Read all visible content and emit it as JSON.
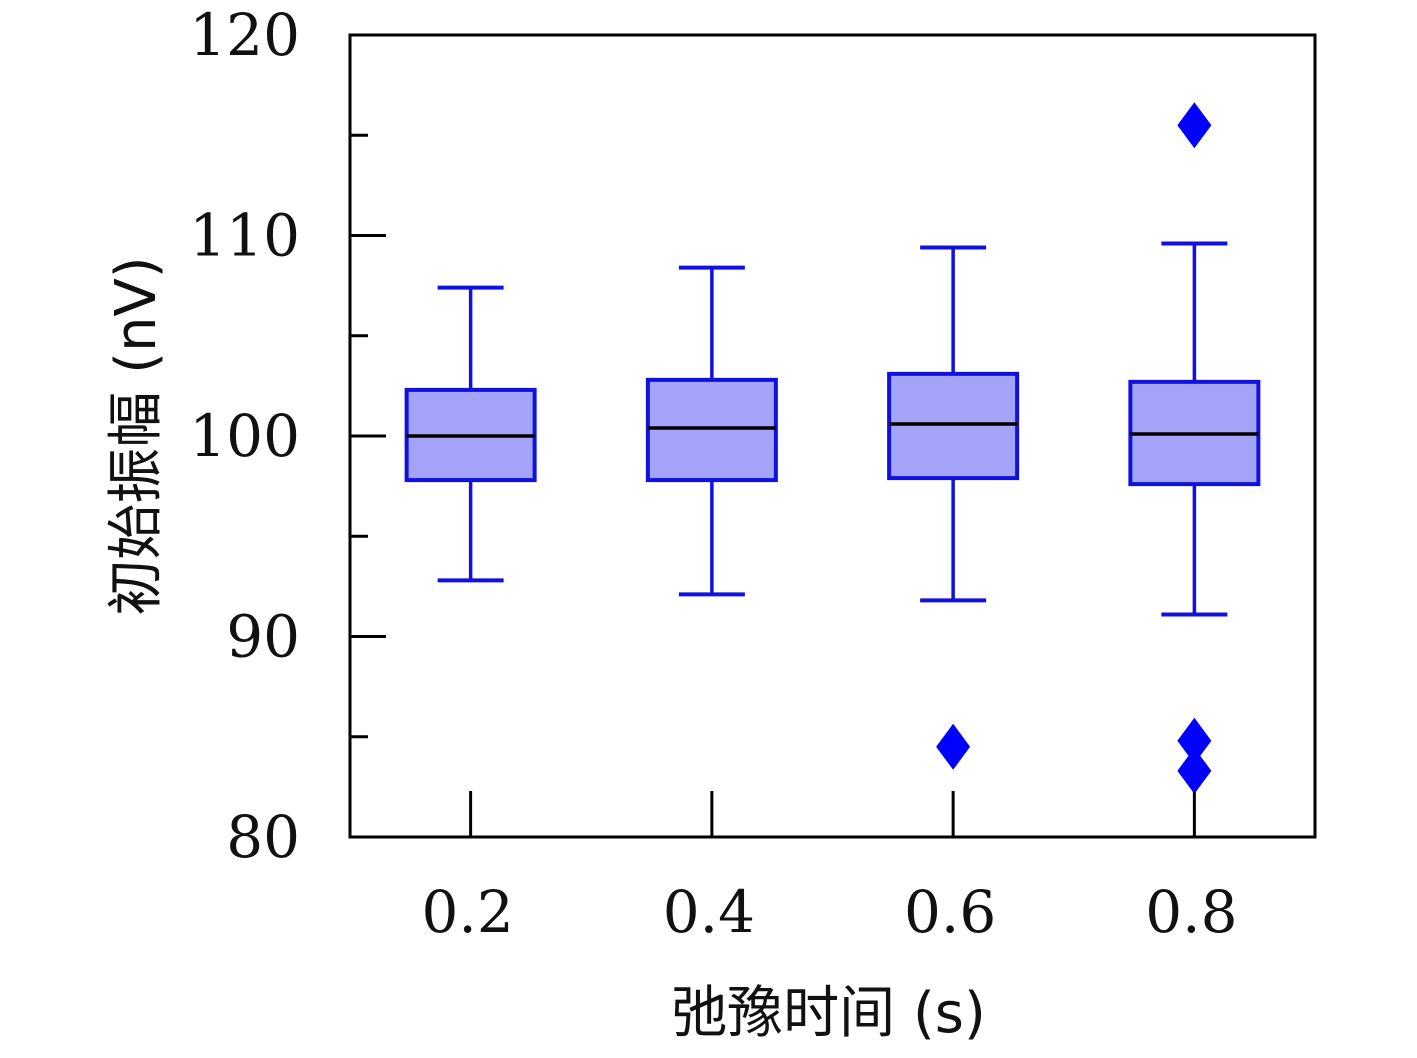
{
  "chart_data": {
    "type": "box",
    "title": "",
    "xlabel": "弛豫时间 (s)",
    "ylabel": "初始振幅 (nV)",
    "categories": [
      "0.2",
      "0.4",
      "0.6",
      "0.8"
    ],
    "ylim": [
      80,
      120
    ],
    "yticks": [
      80,
      90,
      100,
      110,
      120
    ],
    "yticks_minor": [
      85,
      95,
      105,
      115
    ],
    "yticklabels": [
      "80",
      "90",
      "100",
      "110",
      "120"
    ],
    "xticklabels": [
      "0.2",
      "0.4",
      "0.6",
      "0.8"
    ],
    "grid": false,
    "legend": "none",
    "colors": {
      "box_fill": "#a3a3f8",
      "box_edge": "#1010e0",
      "whisker": "#1010e0",
      "median": "#000000",
      "outlier": "#0000ff",
      "axes": "#000000"
    },
    "boxes": [
      {
        "category": "0.2",
        "whislo": 92.8,
        "q1": 97.8,
        "med": 100.0,
        "q3": 102.3,
        "whishi": 107.4,
        "fliers": []
      },
      {
        "category": "0.4",
        "whislo": 92.1,
        "q1": 97.8,
        "med": 100.4,
        "q3": 102.8,
        "whishi": 108.4,
        "fliers": []
      },
      {
        "category": "0.6",
        "whislo": 91.8,
        "q1": 97.9,
        "med": 100.6,
        "q3": 103.1,
        "whishi": 109.4,
        "fliers": [
          84.5
        ]
      },
      {
        "category": "0.8",
        "whislo": 91.1,
        "q1": 97.6,
        "med": 100.1,
        "q3": 102.7,
        "whishi": 109.6,
        "fliers": [
          115.5,
          84.8,
          83.3
        ]
      }
    ]
  }
}
